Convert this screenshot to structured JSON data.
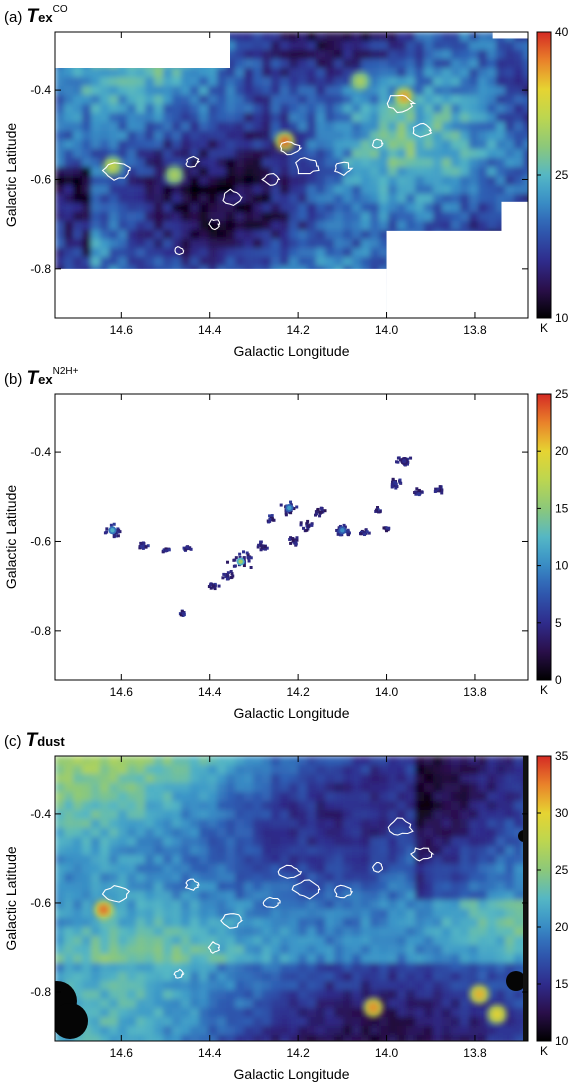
{
  "chart_data": [
    {
      "type": "heatmap",
      "panel_label": "(a)",
      "quantity": "T",
      "quantity_sub": "ex",
      "quantity_sup": "CO",
      "xlabel": "Galactic Longitude",
      "ylabel": "Galactic Latitude",
      "xlim": [
        14.75,
        13.68
      ],
      "ylim": [
        -0.91,
        -0.27
      ],
      "xticks": [
        "14.6",
        "14.4",
        "14.2",
        "14.0",
        "13.8"
      ],
      "xtick_values": [
        14.6,
        14.4,
        14.2,
        14.0,
        13.8
      ],
      "yticks": [
        "-0.4",
        "-0.6",
        "-0.8"
      ],
      "ytick_values": [
        -0.4,
        -0.6,
        -0.8
      ],
      "colorbar": {
        "min": 10,
        "max": 40,
        "ticks": [
          "40",
          "25",
          "10"
        ],
        "tick_values": [
          40,
          25,
          10
        ],
        "unit": "K",
        "colormap": "rainbow"
      },
      "grid": false,
      "hotspots": [
        {
          "l": 14.62,
          "b": -0.57,
          "value": 32
        },
        {
          "l": 14.23,
          "b": -0.515,
          "value": 38
        },
        {
          "l": 13.96,
          "b": -0.415,
          "value": 36
        },
        {
          "l": 14.48,
          "b": -0.59,
          "value": 30
        },
        {
          "l": 14.06,
          "b": -0.38,
          "value": 30
        }
      ]
    },
    {
      "type": "heatmap",
      "panel_label": "(b)",
      "quantity": "T",
      "quantity_sub": "ex",
      "quantity_sup": "N2H+",
      "xlabel": "Galactic Longitude",
      "ylabel": "Galactic Latitude",
      "xlim": [
        14.75,
        13.68
      ],
      "ylim": [
        -0.91,
        -0.27
      ],
      "xticks": [
        "14.6",
        "14.4",
        "14.2",
        "14.0",
        "13.8"
      ],
      "xtick_values": [
        14.6,
        14.4,
        14.2,
        14.0,
        13.8
      ],
      "yticks": [
        "-0.4",
        "-0.6",
        "-0.8"
      ],
      "ytick_values": [
        -0.4,
        -0.6,
        -0.8
      ],
      "colorbar": {
        "min": 0,
        "max": 25,
        "ticks": [
          "25",
          "20",
          "15",
          "10",
          "5",
          "0"
        ],
        "tick_values": [
          25,
          20,
          15,
          10,
          5,
          0
        ],
        "unit": "K",
        "colormap": "rainbow"
      },
      "grid": false,
      "clumps": [
        {
          "l": 14.62,
          "b": -0.575,
          "value": 12
        },
        {
          "l": 14.33,
          "b": -0.645,
          "value": 16
        },
        {
          "l": 14.22,
          "b": -0.525,
          "value": 11
        },
        {
          "l": 14.1,
          "b": -0.575,
          "value": 10
        },
        {
          "l": 13.96,
          "b": -0.42,
          "value": 5
        }
      ]
    },
    {
      "type": "heatmap",
      "panel_label": "(c)",
      "quantity": "T",
      "quantity_sub": "dust",
      "quantity_sup": "",
      "xlabel": "Galactic Longitude",
      "ylabel": "Galactic Latitude",
      "xlim": [
        14.75,
        13.68
      ],
      "ylim": [
        -0.91,
        -0.27
      ],
      "xticks": [
        "14.6",
        "14.4",
        "14.2",
        "14.0",
        "13.8"
      ],
      "xtick_values": [
        14.6,
        14.4,
        14.2,
        14.0,
        13.8
      ],
      "yticks": [
        "-0.4",
        "-0.6",
        "-0.8"
      ],
      "ytick_values": [
        -0.4,
        -0.6,
        -0.8
      ],
      "colorbar": {
        "min": 10,
        "max": 35,
        "ticks": [
          "35",
          "30",
          "25",
          "20",
          "15",
          "10"
        ],
        "tick_values": [
          35,
          30,
          25,
          20,
          15,
          10
        ],
        "unit": "K",
        "colormap": "rainbow"
      },
      "grid": false,
      "hotspots": [
        {
          "l": 14.64,
          "b": -0.615,
          "value": 33
        },
        {
          "l": 14.03,
          "b": -0.835,
          "value": 32
        },
        {
          "l": 13.79,
          "b": -0.805,
          "value": 31
        },
        {
          "l": 13.75,
          "b": -0.85,
          "value": 30
        }
      ]
    }
  ]
}
